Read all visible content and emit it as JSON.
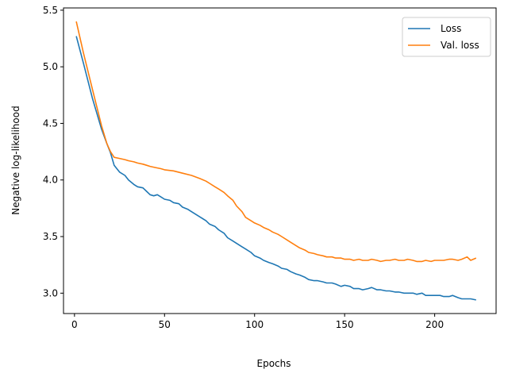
{
  "chart_data": {
    "type": "line",
    "title": "",
    "xlabel": "Epochs",
    "ylabel": "Negative log-likelihood",
    "xlim": [
      -6.1,
      234.1
    ],
    "ylim": [
      2.82,
      5.52
    ],
    "xticks": [
      0,
      50,
      100,
      150,
      200
    ],
    "yticks": [
      3.0,
      3.5,
      4.0,
      4.5,
      5.0,
      5.5
    ],
    "xtick_labels": [
      "0",
      "50",
      "100",
      "150",
      "200"
    ],
    "ytick_labels": [
      "3.0",
      "3.5",
      "4.0",
      "4.5",
      "5.0",
      "5.5"
    ],
    "grid": false,
    "legend_position": "top-right",
    "series": [
      {
        "name": "Loss",
        "color": "#1f77b4",
        "x": [
          1,
          5,
          10,
          15,
          18,
          20,
          22,
          25,
          28,
          30,
          33,
          35,
          38,
          40,
          42,
          44,
          46,
          48,
          50,
          53,
          55,
          58,
          60,
          63,
          65,
          68,
          70,
          73,
          75,
          78,
          80,
          83,
          85,
          88,
          90,
          93,
          95,
          98,
          100,
          103,
          105,
          108,
          110,
          113,
          115,
          118,
          120,
          123,
          125,
          128,
          130,
          133,
          135,
          138,
          140,
          143,
          145,
          148,
          150,
          153,
          155,
          158,
          160,
          163,
          165,
          168,
          170,
          173,
          175,
          178,
          180,
          183,
          185,
          188,
          190,
          193,
          195,
          198,
          200,
          203,
          205,
          208,
          210,
          213,
          215,
          218,
          220,
          223
        ],
        "y": [
          5.27,
          5.03,
          4.72,
          4.45,
          4.32,
          4.24,
          4.13,
          4.07,
          4.04,
          4.0,
          3.96,
          3.94,
          3.93,
          3.9,
          3.87,
          3.86,
          3.87,
          3.85,
          3.83,
          3.82,
          3.8,
          3.79,
          3.76,
          3.74,
          3.72,
          3.69,
          3.67,
          3.64,
          3.61,
          3.59,
          3.56,
          3.53,
          3.49,
          3.46,
          3.44,
          3.41,
          3.39,
          3.36,
          3.33,
          3.31,
          3.29,
          3.27,
          3.26,
          3.24,
          3.22,
          3.21,
          3.19,
          3.17,
          3.16,
          3.14,
          3.12,
          3.11,
          3.11,
          3.1,
          3.09,
          3.09,
          3.08,
          3.06,
          3.07,
          3.06,
          3.04,
          3.04,
          3.03,
          3.04,
          3.05,
          3.03,
          3.03,
          3.02,
          3.02,
          3.01,
          3.01,
          3.0,
          3.0,
          3.0,
          2.99,
          3.0,
          2.98,
          2.98,
          2.98,
          2.98,
          2.97,
          2.97,
          2.98,
          2.96,
          2.95,
          2.95,
          2.95,
          2.94
        ]
      },
      {
        "name": "Val. loss",
        "color": "#ff7f0e",
        "x": [
          1,
          5,
          10,
          15,
          18,
          20,
          22,
          25,
          28,
          30,
          33,
          35,
          38,
          40,
          42,
          45,
          48,
          50,
          55,
          60,
          65,
          70,
          73,
          75,
          78,
          80,
          83,
          85,
          88,
          90,
          93,
          95,
          98,
          100,
          103,
          105,
          108,
          110,
          113,
          115,
          118,
          120,
          123,
          125,
          128,
          130,
          133,
          135,
          138,
          140,
          143,
          145,
          148,
          150,
          153,
          155,
          158,
          160,
          163,
          165,
          168,
          170,
          173,
          175,
          178,
          180,
          183,
          185,
          188,
          190,
          193,
          195,
          198,
          200,
          203,
          205,
          208,
          210,
          213,
          215,
          218,
          220,
          223
        ],
        "y": [
          5.4,
          5.12,
          4.8,
          4.48,
          4.32,
          4.25,
          4.2,
          4.19,
          4.18,
          4.17,
          4.16,
          4.15,
          4.14,
          4.13,
          4.12,
          4.11,
          4.1,
          4.09,
          4.08,
          4.06,
          4.04,
          4.01,
          3.99,
          3.97,
          3.94,
          3.92,
          3.89,
          3.86,
          3.82,
          3.77,
          3.72,
          3.67,
          3.64,
          3.62,
          3.6,
          3.58,
          3.56,
          3.54,
          3.52,
          3.5,
          3.47,
          3.45,
          3.42,
          3.4,
          3.38,
          3.36,
          3.35,
          3.34,
          3.33,
          3.32,
          3.32,
          3.31,
          3.31,
          3.3,
          3.3,
          3.29,
          3.3,
          3.29,
          3.29,
          3.3,
          3.29,
          3.28,
          3.29,
          3.29,
          3.3,
          3.29,
          3.29,
          3.3,
          3.29,
          3.28,
          3.28,
          3.29,
          3.28,
          3.29,
          3.29,
          3.29,
          3.3,
          3.3,
          3.29,
          3.3,
          3.32,
          3.29,
          3.31
        ]
      }
    ]
  }
}
